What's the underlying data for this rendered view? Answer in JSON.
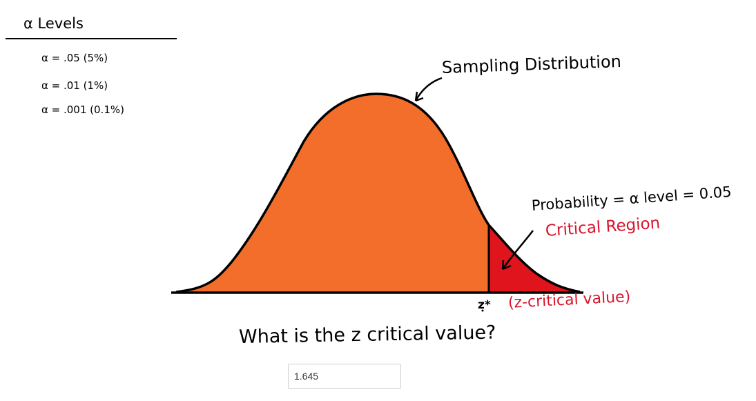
{
  "alpha_levels": {
    "title": "α Levels",
    "items": [
      "α = .05 (5%)",
      "α = .01 (1%)",
      "α = .001 (0.1%)"
    ]
  },
  "diagram": {
    "distribution_label": "Sampling Distribution",
    "probability_label": "Probability = α level = 0.05",
    "critical_region_label": "Critical Region",
    "z_star_label": "z*",
    "z_critical_label": "(z-critical value)",
    "colors": {
      "body_fill": "#f26e2a",
      "critical_fill": "#e0141d",
      "critical_text": "#d9142c",
      "outline": "#000000"
    }
  },
  "question": {
    "text": "What is the z critical value?",
    "answer_value": "1.645"
  }
}
